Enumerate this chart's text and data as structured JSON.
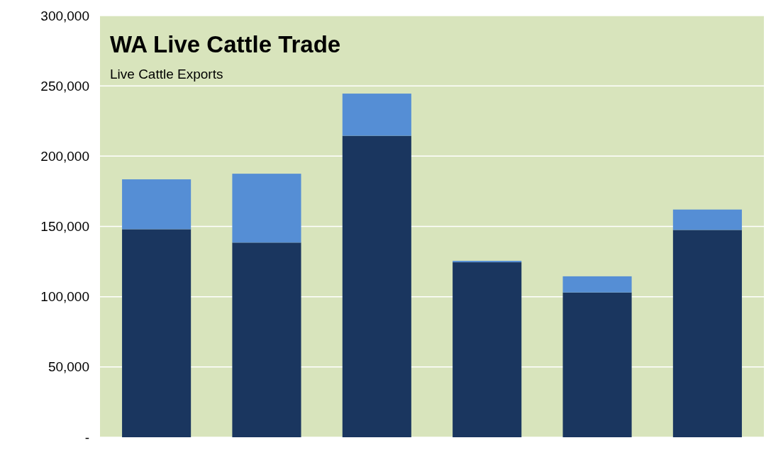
{
  "chart_data": {
    "type": "bar",
    "title": "WA Live Cattle Trade",
    "subtitle": "Live Cattle Exports",
    "stacked": true,
    "categories": [
      null,
      null,
      null,
      null,
      null,
      null
    ],
    "series": [
      {
        "color": "#1a365f",
        "values": [
          148000,
          138500,
          214500,
          124500,
          103000,
          147500
        ]
      },
      {
        "color": "#558ed5",
        "values": [
          35500,
          49000,
          30000,
          1000,
          11500,
          14500
        ]
      }
    ],
    "ylim": [
      0,
      300000
    ],
    "yticks": [
      {
        "value": 0,
        "label": "-"
      },
      {
        "value": 50000,
        "label": "50,000"
      },
      {
        "value": 100000,
        "label": "100,000"
      },
      {
        "value": 150000,
        "label": "150,000"
      },
      {
        "value": 200000,
        "label": "200,000"
      },
      {
        "value": 250000,
        "label": "250,000"
      },
      {
        "value": 300000,
        "label": "300,000"
      }
    ],
    "grid": "y"
  }
}
